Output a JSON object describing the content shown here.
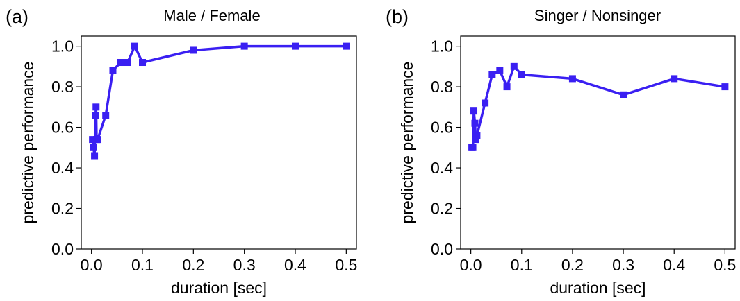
{
  "chart_data": [
    {
      "type": "line",
      "panel_label": "(a)",
      "title": "Male / Female",
      "xlabel": "duration [sec]",
      "ylabel": "predictive performance",
      "xlim": [
        -0.02,
        0.52
      ],
      "ylim": [
        0.0,
        1.05
      ],
      "xticks": [
        0.0,
        0.1,
        0.2,
        0.3,
        0.4,
        0.5
      ],
      "xtick_labels": [
        "0.0",
        "0.1",
        "0.2",
        "0.3",
        "0.4",
        "0.5"
      ],
      "yticks": [
        0.0,
        0.2,
        0.4,
        0.6,
        0.8,
        1.0
      ],
      "ytick_labels": [
        "0.0",
        "0.2",
        "0.4",
        "0.6",
        "0.8",
        "1.0"
      ],
      "grid": false,
      "color": "#3a1ff2",
      "marker": "square",
      "series": [
        {
          "x": [
            0.002,
            0.004,
            0.006,
            0.008,
            0.009,
            0.01,
            0.012,
            0.028,
            0.042,
            0.057,
            0.071,
            0.085,
            0.1,
            0.2,
            0.3,
            0.4,
            0.5
          ],
          "y": [
            0.54,
            0.5,
            0.46,
            0.66,
            0.7,
            0.54,
            0.54,
            0.66,
            0.88,
            0.92,
            0.92,
            1.0,
            0.92,
            0.98,
            1.0,
            1.0,
            1.0
          ]
        }
      ]
    },
    {
      "type": "line",
      "panel_label": "(b)",
      "title": "Singer / Nonsinger",
      "xlabel": "duration [sec]",
      "ylabel": "predictive performance",
      "xlim": [
        -0.02,
        0.52
      ],
      "ylim": [
        0.0,
        1.05
      ],
      "xticks": [
        0.0,
        0.1,
        0.2,
        0.3,
        0.4,
        0.5
      ],
      "xtick_labels": [
        "0.0",
        "0.1",
        "0.2",
        "0.3",
        "0.4",
        "0.5"
      ],
      "yticks": [
        0.0,
        0.2,
        0.4,
        0.6,
        0.8,
        1.0
      ],
      "ytick_labels": [
        "0.0",
        "0.2",
        "0.4",
        "0.6",
        "0.8",
        "1.0"
      ],
      "grid": false,
      "color": "#3a1ff2",
      "marker": "square",
      "series": [
        {
          "x": [
            0.002,
            0.004,
            0.006,
            0.008,
            0.01,
            0.012,
            0.028,
            0.042,
            0.057,
            0.071,
            0.085,
            0.1,
            0.2,
            0.3,
            0.4,
            0.5
          ],
          "y": [
            0.5,
            0.5,
            0.68,
            0.62,
            0.54,
            0.56,
            0.72,
            0.86,
            0.88,
            0.8,
            0.9,
            0.86,
            0.84,
            0.76,
            0.84,
            0.8
          ]
        }
      ]
    }
  ]
}
